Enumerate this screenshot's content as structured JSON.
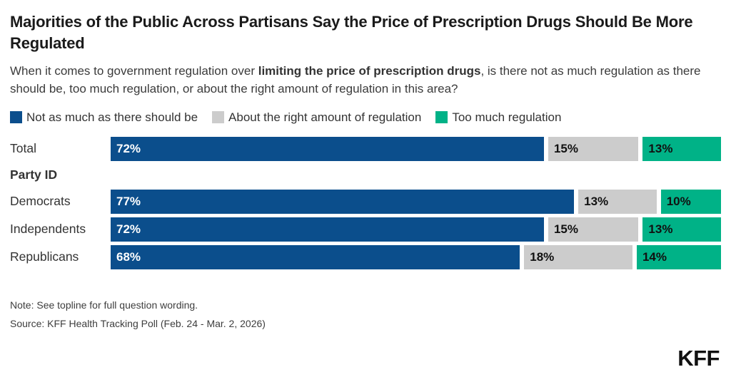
{
  "header": {
    "title": "Majorities of the Public Across Partisans Say the Price of Prescription Drugs Should Be More Regulated",
    "subtitle_prefix": "When it comes to government regulation over ",
    "subtitle_bold": "limiting the price of prescription drugs",
    "subtitle_suffix": ", is there not as much regulation as there should be, too much regulation, or about the right amount of regulation in this area?"
  },
  "chart_data": {
    "type": "bar",
    "orientation": "horizontal",
    "stacked": true,
    "unit": "%",
    "xlim": [
      0,
      100
    ],
    "grid": false,
    "legend_position": "top",
    "categories": [
      "Total",
      "Democrats",
      "Independents",
      "Republicans"
    ],
    "group_label": "Party ID",
    "group_applies_to": [
      "Democrats",
      "Independents",
      "Republicans"
    ],
    "series": [
      {
        "name": "Not as much as there should be",
        "color": "#0B4E8C",
        "text_color": "#FFFFFF",
        "values": [
          72,
          77,
          72,
          68
        ]
      },
      {
        "name": "About the right amount of regulation",
        "color": "#CCCCCC",
        "text_color": "#111111",
        "values": [
          15,
          13,
          15,
          18
        ]
      },
      {
        "name": "Too much regulation",
        "color": "#00B287",
        "text_color": "#111111",
        "values": [
          13,
          10,
          13,
          14
        ]
      }
    ],
    "data_labels": [
      [
        "72%",
        "15%",
        "13%"
      ],
      [
        "77%",
        "13%",
        "10%"
      ],
      [
        "72%",
        "15%",
        "13%"
      ],
      [
        "68%",
        "18%",
        "14%"
      ]
    ]
  },
  "footer": {
    "note": "Note: See topline for full question wording.",
    "source": "Source: KFF Health Tracking Poll (Feb. 24 - Mar. 2, 2026)",
    "logo": "KFF"
  }
}
